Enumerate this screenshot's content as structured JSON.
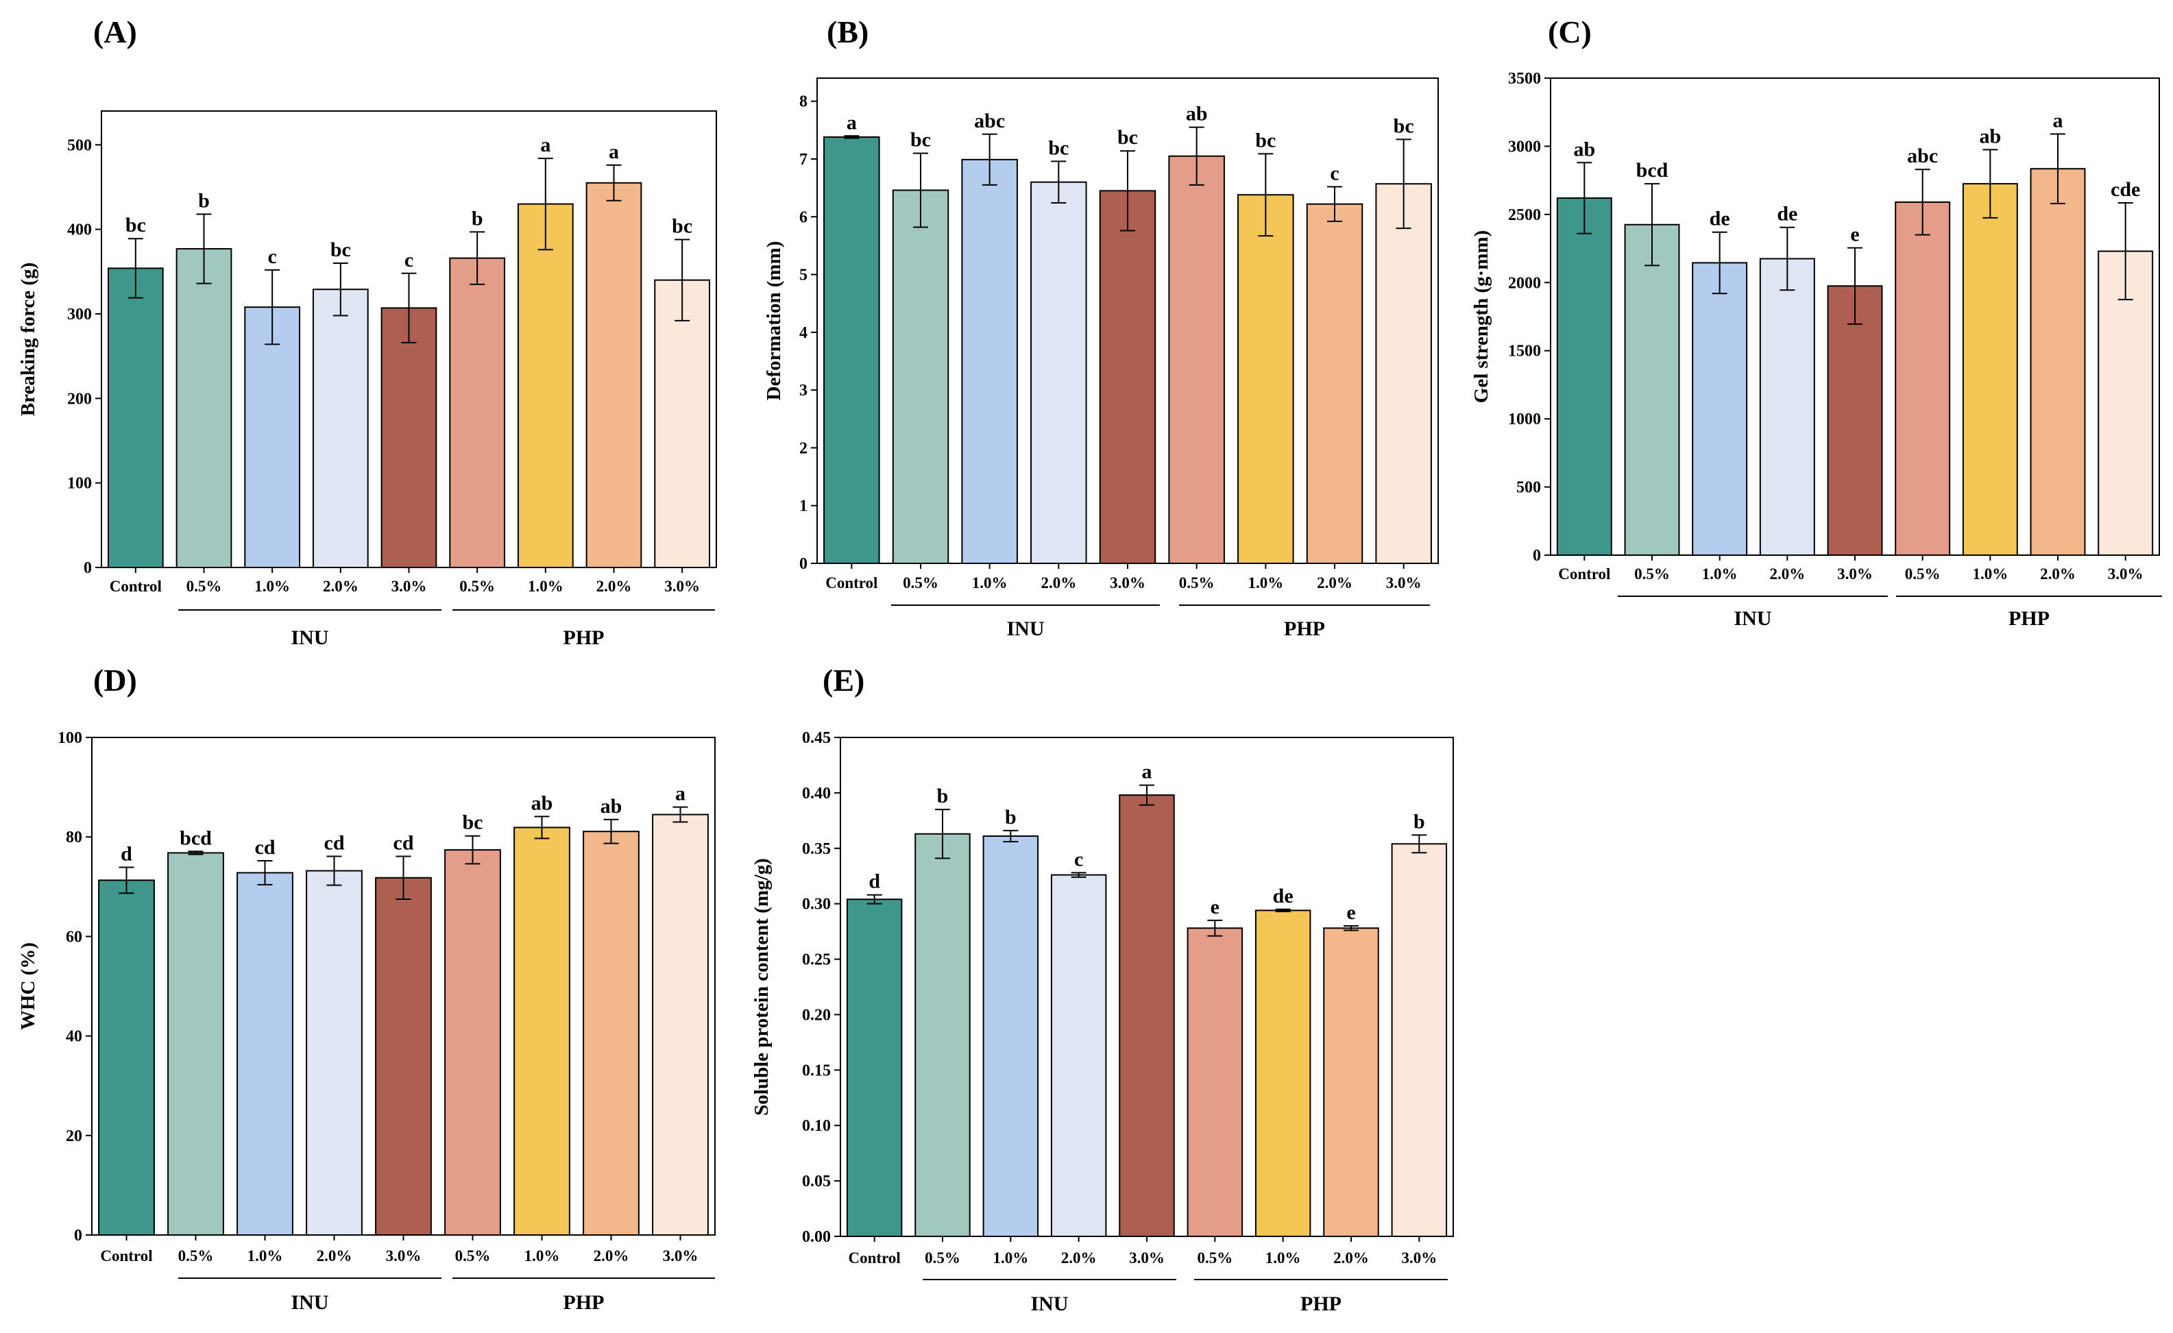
{
  "figure": {
    "group_labels": [
      "INU",
      "PHP"
    ]
  },
  "chart_data": [
    {
      "panel": "(A)",
      "type": "bar",
      "categories": [
        "Control",
        "0.5%",
        "1.0%",
        "2.0%",
        "3.0%",
        "0.5%",
        "1.0%",
        "2.0%",
        "3.0%"
      ],
      "values": [
        354,
        377,
        308,
        329,
        307,
        366,
        430,
        455,
        340
      ],
      "errors": [
        35,
        41,
        44,
        31,
        41,
        31,
        54,
        21,
        48
      ],
      "letters": [
        "bc",
        "b",
        "c",
        "bc",
        "c",
        "b",
        "a",
        "a",
        "bc"
      ],
      "xlabel": "",
      "ylabel": "Breaking force (g)",
      "ylim": [
        0,
        540
      ],
      "yticks": [
        0,
        100,
        200,
        300,
        400,
        500
      ],
      "ytick_labels": [
        "0",
        "100",
        "200",
        "300",
        "400",
        "500"
      ]
    },
    {
      "panel": "(B)",
      "type": "bar",
      "categories": [
        "Control",
        "0.5%",
        "1.0%",
        "2.0%",
        "3.0%",
        "0.5%",
        "1.0%",
        "2.0%",
        "3.0%"
      ],
      "values": [
        7.38,
        6.46,
        6.99,
        6.6,
        6.45,
        7.05,
        6.38,
        6.22,
        6.57
      ],
      "errors": [
        0.02,
        0.64,
        0.44,
        0.36,
        0.69,
        0.5,
        0.71,
        0.3,
        0.77
      ],
      "letters": [
        "a",
        "bc",
        "abc",
        "bc",
        "bc",
        "ab",
        "bc",
        "c",
        "bc"
      ],
      "xlabel": "",
      "ylabel": "Deformation (mm)",
      "ylim": [
        0,
        8.4
      ],
      "yticks": [
        0,
        1,
        2,
        3,
        4,
        5,
        6,
        7,
        8
      ],
      "ytick_labels": [
        "0",
        "1",
        "2",
        "3",
        "4",
        "5",
        "6",
        "7",
        "8"
      ]
    },
    {
      "panel": "(C)",
      "type": "bar",
      "categories": [
        "Control",
        "0.5%",
        "1.0%",
        "2.0%",
        "3.0%",
        "0.5%",
        "1.0%",
        "2.0%",
        "3.0%"
      ],
      "values": [
        2620,
        2425,
        2145,
        2175,
        1975,
        2590,
        2725,
        2835,
        2230
      ],
      "errors": [
        260,
        300,
        225,
        230,
        280,
        240,
        250,
        255,
        355
      ],
      "letters": [
        "ab",
        "bcd",
        "de",
        "de",
        "e",
        "abc",
        "ab",
        "a",
        "cde"
      ],
      "xlabel": "",
      "ylabel": "Gel strength (g·mm)",
      "ylim": [
        0,
        3500
      ],
      "yticks": [
        0,
        500,
        1000,
        1500,
        2000,
        2500,
        3000,
        3500
      ],
      "ytick_labels": [
        "0",
        "500",
        "1000",
        "1500",
        "2000",
        "2500",
        "3000",
        "3500"
      ]
    },
    {
      "panel": "(D)",
      "type": "bar",
      "categories": [
        "Control",
        "0.5%",
        "1.0%",
        "2.0%",
        "3.0%",
        "0.5%",
        "1.0%",
        "2.0%",
        "3.0%"
      ],
      "values": [
        71.3,
        76.8,
        72.8,
        73.2,
        71.8,
        77.4,
        81.9,
        81.1,
        84.5
      ],
      "errors": [
        2.6,
        0.3,
        2.4,
        2.9,
        4.3,
        2.8,
        2.2,
        2.4,
        1.5
      ],
      "letters": [
        "d",
        "bcd",
        "cd",
        "cd",
        "cd",
        "bc",
        "ab",
        "ab",
        "a"
      ],
      "xlabel": "",
      "ylabel": "WHC (%)",
      "ylim": [
        0,
        100
      ],
      "yticks": [
        0,
        20,
        40,
        60,
        80,
        100
      ],
      "ytick_labels": [
        "0",
        "20",
        "40",
        "60",
        "80",
        "100"
      ]
    },
    {
      "panel": "(E)",
      "type": "bar",
      "categories": [
        "Control",
        "0.5%",
        "1.0%",
        "2.0%",
        "3.0%",
        "0.5%",
        "1.0%",
        "2.0%",
        "3.0%"
      ],
      "values": [
        0.304,
        0.363,
        0.361,
        0.326,
        0.398,
        0.278,
        0.294,
        0.278,
        0.354
      ],
      "errors": [
        0.004,
        0.022,
        0.005,
        0.002,
        0.009,
        0.007,
        0.001,
        0.002,
        0.008
      ],
      "letters": [
        "d",
        "b",
        "b",
        "c",
        "a",
        "e",
        "de",
        "e",
        "b"
      ],
      "xlabel": "",
      "ylabel": "Soluble protein content (mg/g)",
      "ylim": [
        0,
        0.45
      ],
      "yticks": [
        0,
        0.05,
        0.1,
        0.15,
        0.2,
        0.25,
        0.3,
        0.35,
        0.4,
        0.45
      ],
      "ytick_labels": [
        "0.00",
        "0.05",
        "0.10",
        "0.15",
        "0.20",
        "0.25",
        "0.30",
        "0.35",
        "0.40",
        "0.45"
      ]
    }
  ],
  "colors": {
    "bars": [
      "#3f968a",
      "#a1c8bf",
      "#b4cdee",
      "#e0e5f4",
      "#ad5f52",
      "#e49d89",
      "#f3c656",
      "#f2b78b",
      "#fbe8da"
    ],
    "stroke": "#000000"
  }
}
